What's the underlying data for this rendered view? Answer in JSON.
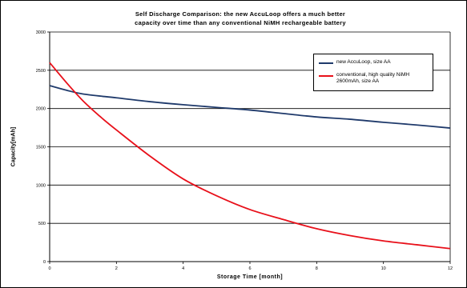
{
  "chart_data": {
    "type": "line",
    "title_line1": "Self Discharge Comparison: the new AccuLoop offers a much better",
    "title_line2": "capacity over time than any conventional NiMH rechargeable battery",
    "xlabel": "Storage Time [month]",
    "ylabel": "Capacity[mAh]",
    "xlim": [
      0,
      12
    ],
    "ylim": [
      0,
      3000
    ],
    "xticks": [
      "0",
      "2",
      "4",
      "6",
      "8",
      "10",
      "12"
    ],
    "yticks": [
      "0",
      "500",
      "1000",
      "1500",
      "2000",
      "2500",
      "3000"
    ],
    "grid": "horizontal",
    "legend_position": "top-right",
    "series": [
      {
        "name": "new AccuLoop, size AA",
        "color": "#1f3a6b",
        "points": [
          [
            0,
            2300
          ],
          [
            0.5,
            2240
          ],
          [
            1,
            2190
          ],
          [
            2,
            2140
          ],
          [
            3,
            2090
          ],
          [
            4,
            2050
          ],
          [
            5,
            2015
          ],
          [
            6,
            1980
          ],
          [
            7,
            1935
          ],
          [
            8,
            1890
          ],
          [
            9,
            1860
          ],
          [
            10,
            1820
          ],
          [
            11,
            1785
          ],
          [
            12,
            1745
          ]
        ]
      },
      {
        "name": "conventional, high quality NiMH\n2600mAh, size AA",
        "color": "#e8101a",
        "points": [
          [
            0,
            2600
          ],
          [
            0.5,
            2340
          ],
          [
            1,
            2100
          ],
          [
            1.5,
            1900
          ],
          [
            2,
            1720
          ],
          [
            3,
            1380
          ],
          [
            4,
            1080
          ],
          [
            5,
            860
          ],
          [
            6,
            680
          ],
          [
            7,
            550
          ],
          [
            8,
            430
          ],
          [
            9,
            340
          ],
          [
            10,
            270
          ],
          [
            11,
            220
          ],
          [
            12,
            170
          ]
        ]
      }
    ]
  }
}
